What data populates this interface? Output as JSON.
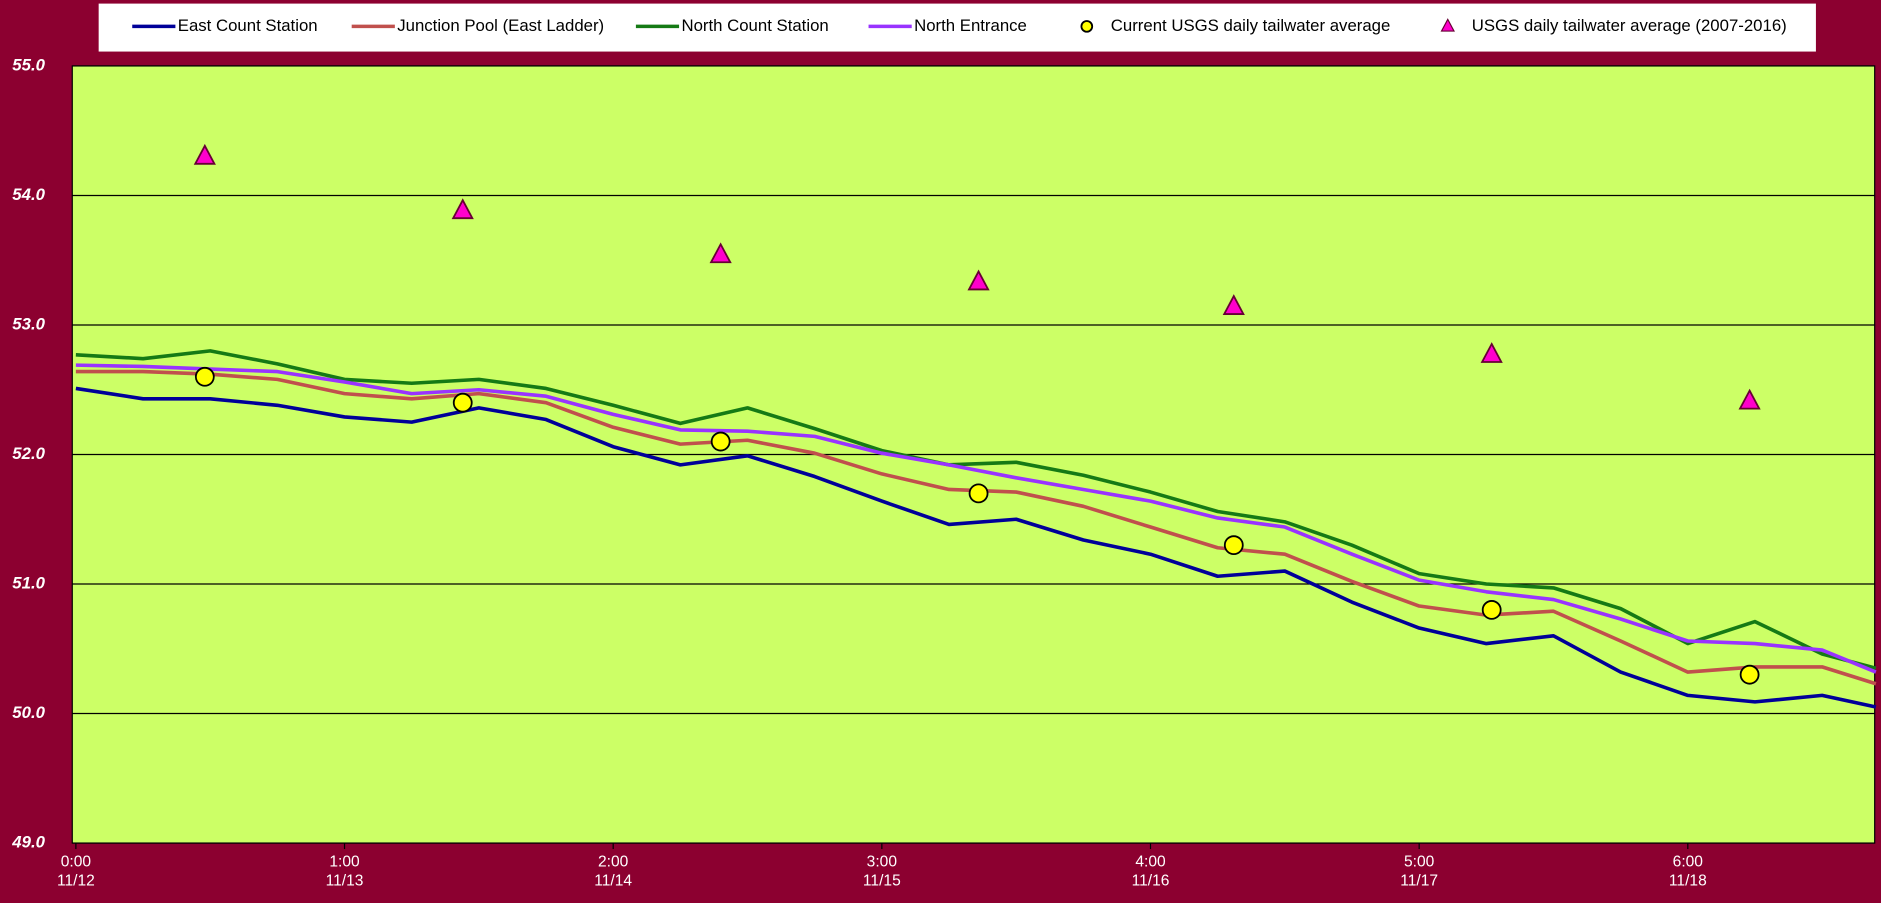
{
  "chart_data": {
    "type": "line",
    "xlim": [
      0,
      6.7
    ],
    "ylim": [
      49,
      55
    ],
    "yticks": [
      {
        "value": 49,
        "label": "49.0"
      },
      {
        "value": 50,
        "label": "50.0"
      },
      {
        "value": 51,
        "label": "51.0"
      },
      {
        "value": 52,
        "label": "52.0"
      },
      {
        "value": 53,
        "label": "53.0"
      },
      {
        "value": 54,
        "label": "54.0"
      },
      {
        "value": 55,
        "label": "55.0"
      }
    ],
    "xticks": [
      {
        "value": 0,
        "label": "0:00",
        "date": "11/12"
      },
      {
        "value": 1,
        "label": "1:00",
        "date": "11/13"
      },
      {
        "value": 2,
        "label": "2:00",
        "date": "11/14"
      },
      {
        "value": 3,
        "label": "3:00",
        "date": "11/15"
      },
      {
        "value": 4,
        "label": "4:00",
        "date": "11/16"
      },
      {
        "value": 5,
        "label": "5:00",
        "date": "11/17"
      },
      {
        "value": 6,
        "label": "6:00",
        "date": "11/18"
      }
    ],
    "grid": true,
    "x": [
      0,
      0.25,
      0.5,
      0.75,
      1,
      1.25,
      1.5,
      1.75,
      2,
      2.25,
      2.5,
      2.75,
      3,
      3.25,
      3.5,
      3.75,
      4,
      4.25,
      4.5,
      4.75,
      5,
      5.25,
      5.5,
      5.75,
      6,
      6.25,
      6.5,
      6.7
    ],
    "series": [
      {
        "name": "East Count Station",
        "color": "#000099",
        "values": [
          52.51,
          52.43,
          52.43,
          52.38,
          52.29,
          52.25,
          52.36,
          52.27,
          52.06,
          51.92,
          51.99,
          51.83,
          51.64,
          51.46,
          51.5,
          51.34,
          51.23,
          51.06,
          51.1,
          50.86,
          50.66,
          50.54,
          50.6,
          50.32,
          50.14,
          50.09,
          50.14,
          50.05
        ]
      },
      {
        "name": "Junction Pool (East Ladder)",
        "color": "#c0504d",
        "values": [
          52.64,
          52.64,
          52.62,
          52.58,
          52.47,
          52.43,
          52.47,
          52.4,
          52.21,
          52.08,
          52.11,
          52.01,
          51.85,
          51.73,
          51.71,
          51.6,
          51.44,
          51.28,
          51.23,
          51.02,
          50.83,
          50.76,
          50.79,
          50.56,
          50.32,
          50.36,
          50.36,
          50.23
        ]
      },
      {
        "name": "North Count Station",
        "color": "#157a15",
        "values": [
          52.77,
          52.74,
          52.8,
          52.7,
          52.58,
          52.55,
          52.58,
          52.51,
          52.38,
          52.24,
          52.36,
          52.2,
          52.03,
          51.92,
          51.94,
          51.84,
          51.71,
          51.56,
          51.48,
          51.3,
          51.08,
          51.0,
          50.97,
          50.81,
          50.54,
          50.71,
          50.46,
          50.35
        ]
      },
      {
        "name": "North Entrance",
        "color": "#9933ff",
        "values": [
          52.69,
          52.68,
          52.66,
          52.64,
          52.56,
          52.47,
          52.5,
          52.45,
          52.31,
          52.19,
          52.18,
          52.14,
          52.01,
          51.92,
          51.82,
          51.73,
          51.64,
          51.51,
          51.44,
          51.23,
          51.03,
          50.94,
          50.88,
          50.73,
          50.56,
          50.54,
          50.49,
          50.32
        ]
      },
      {
        "name": "Current USGS daily tailwater average",
        "type": "scatter",
        "marker": "circle",
        "color": "#ffff00",
        "x": [
          0.48,
          1.44,
          2.4,
          3.36,
          4.31,
          5.27,
          6.23
        ],
        "values": [
          52.6,
          52.4,
          52.1,
          51.7,
          51.3,
          50.8,
          50.3
        ]
      },
      {
        "name": "USGS daily tailwater average (2007-2016)",
        "type": "scatter",
        "marker": "triangle",
        "color": "#ff00cc",
        "x": [
          0.48,
          1.44,
          2.4,
          3.36,
          4.31,
          5.27,
          6.23
        ],
        "values": [
          54.3,
          53.88,
          53.54,
          53.33,
          53.14,
          52.77,
          52.41
        ]
      }
    ]
  }
}
